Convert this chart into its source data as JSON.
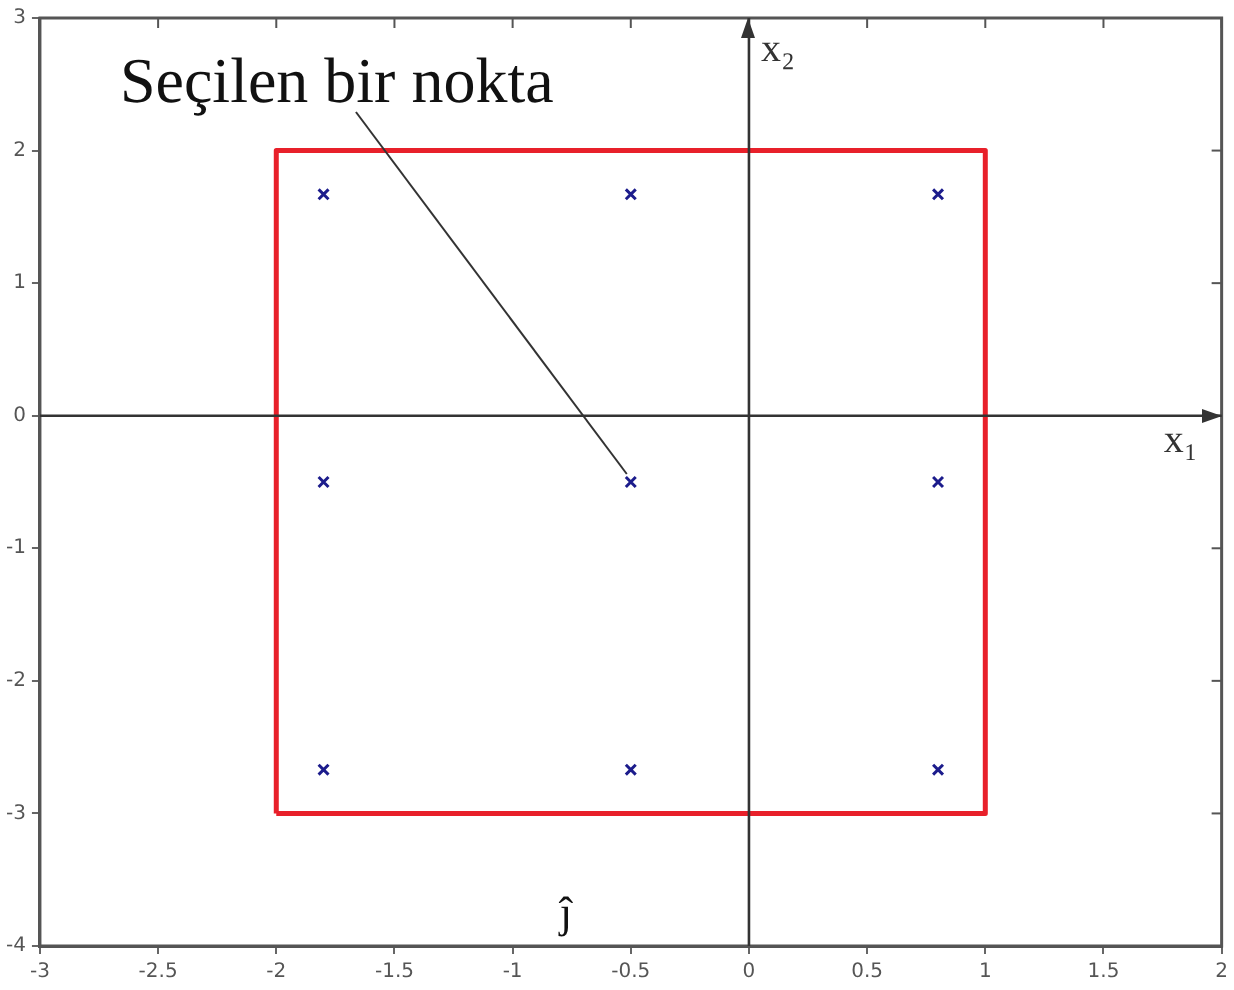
{
  "chart_data": {
    "type": "scatter",
    "series": [
      {
        "type": "scatter",
        "color": "#1c1c8c",
        "x": [
          -1.8,
          -0.5,
          0.8,
          -1.8,
          -0.5,
          0.8,
          -1.8,
          -0.5,
          0.8
        ],
        "values": [
          1.67,
          1.67,
          1.67,
          -0.5,
          -0.5,
          -0.5,
          -2.67,
          -2.67,
          -2.67
        ]
      },
      {
        "type": "line",
        "marker": "none",
        "color": "#e8202a",
        "x": [
          -2,
          -2,
          1,
          1
        ],
        "values": [
          -3,
          2,
          2,
          -3
        ]
      },
      {
        "type": "line",
        "marker": "none",
        "color": "#e8202a",
        "x": [
          -2,
          1
        ],
        "values": [
          -3,
          -3
        ]
      }
    ],
    "xlim": [
      -3,
      2
    ],
    "xticks": [
      -3,
      -2.5,
      -2,
      -1.5,
      -1,
      -0.5,
      0,
      0.5,
      1,
      1.5,
      2
    ],
    "ylim": [
      -4,
      3
    ],
    "yticks": [
      -4,
      -3,
      -2,
      -1,
      0,
      1,
      2,
      3
    ],
    "ref_lines": [
      {
        "axis": "y",
        "value": 0,
        "label": "x₁"
      },
      {
        "axis": "x",
        "value": 0,
        "label": "x₂"
      }
    ],
    "annotations": [
      {
        "text": "Seçilen bir nokta",
        "x": -0.5,
        "y": -0.5
      },
      "ĵ"
    ],
    "marker": "cross",
    "grid": false,
    "legend": false
  }
}
